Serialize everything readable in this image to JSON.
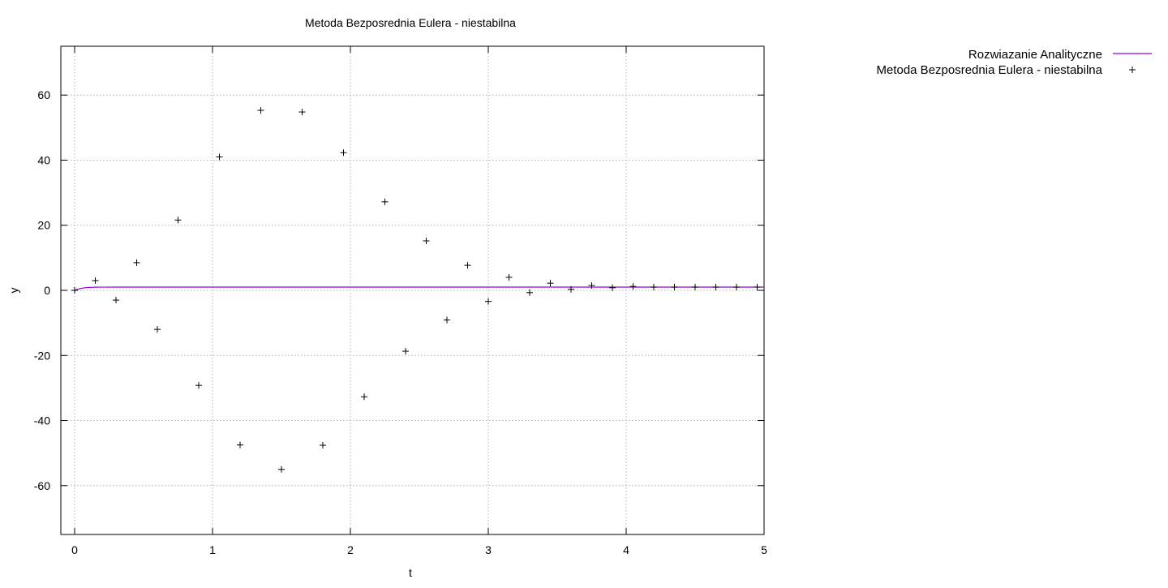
{
  "chart_data": {
    "type": "scatter",
    "title": "Metoda Bezposrednia Eulera - niestabilna",
    "xlabel": "t",
    "ylabel": "y",
    "xlim": [
      -0.1,
      5
    ],
    "ylim": [
      -75,
      75
    ],
    "xticks": [
      0,
      1,
      2,
      3,
      4,
      5
    ],
    "yticks": [
      -60,
      -40,
      -20,
      0,
      20,
      40,
      60
    ],
    "grid": true,
    "legend_position": "top-right-outside",
    "series": [
      {
        "name": "Rozwiazanie Analityczne",
        "type": "line",
        "color": "#9400d3",
        "x": [
          0,
          0.02,
          0.05,
          0.08,
          0.1,
          0.15,
          0.2,
          0.3,
          0.5,
          1,
          2,
          3,
          4,
          5
        ],
        "y": [
          0,
          0.33,
          0.63,
          0.82,
          0.89,
          0.96,
          0.98,
          1.0,
          1.0,
          1.0,
          1.0,
          1.0,
          1.0,
          1.0
        ]
      },
      {
        "name": "Metoda Bezposrednia Eulera - niestabilna",
        "type": "scatter",
        "marker": "+",
        "color": "#000000",
        "x": [
          0,
          0.15,
          0.3,
          0.45,
          0.6,
          0.75,
          0.9,
          1.05,
          1.2,
          1.35,
          1.5,
          1.65,
          1.8,
          1.95,
          2.1,
          2.25,
          2.4,
          2.55,
          2.7,
          2.85,
          3.0,
          3.15,
          3.3,
          3.45,
          3.6,
          3.75,
          3.9,
          4.05,
          4.2,
          4.35,
          4.5,
          4.65,
          4.8,
          4.95
        ],
        "y": [
          0,
          3,
          -3,
          8.5,
          -12,
          21.6,
          -29.2,
          41,
          -47.5,
          55.3,
          -55,
          54.8,
          -47.6,
          42.3,
          -32.7,
          27.2,
          -18.7,
          15.2,
          -9.1,
          7.7,
          -3.4,
          4.0,
          -0.7,
          2.2,
          0.3,
          1.5,
          0.8,
          1.2,
          1.0,
          1.0,
          1.0,
          1.0,
          1.0,
          1.0
        ]
      }
    ]
  }
}
